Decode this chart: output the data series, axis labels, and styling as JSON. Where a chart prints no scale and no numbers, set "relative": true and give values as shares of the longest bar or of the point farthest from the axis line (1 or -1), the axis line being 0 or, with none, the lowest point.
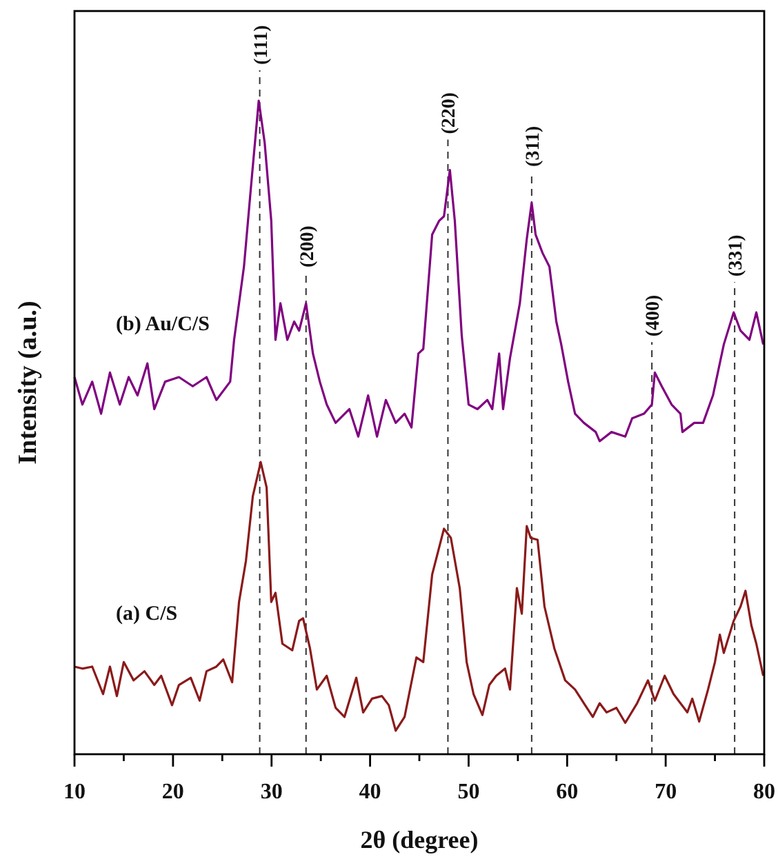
{
  "chart_data": {
    "type": "line",
    "relative": true,
    "xlabel": "2θ (degree)",
    "ylabel": "Intensity (a.u.)",
    "xlim": [
      10,
      80
    ],
    "xticks": [
      10,
      {
        "value": 15,
        "label": null
      },
      20,
      {
        "value": 25,
        "label": null
      },
      30,
      {
        "value": 35,
        "label": null
      },
      40,
      {
        "value": 45,
        "label": null
      },
      50,
      {
        "value": 55,
        "label": null
      },
      60,
      {
        "value": 65,
        "label": null
      },
      70,
      {
        "value": 75,
        "label": null
      },
      80
    ],
    "grid": false,
    "marker": "none",
    "line_style": "solid",
    "annotations": [
      {
        "text": "(111)",
        "x": 28.8,
        "y": 1.0
      },
      {
        "text": "(200)",
        "x": 33.5,
        "y": 0.69
      },
      {
        "text": "(220)",
        "x": 47.9,
        "y": 0.894
      },
      {
        "text": "(311)",
        "x": 56.4,
        "y": 0.844
      },
      {
        "text": "(400)",
        "x": 68.6,
        "y": 0.584
      },
      {
        "text": "(331)",
        "x": 77.0,
        "y": 0.676
      }
    ],
    "series": [
      {
        "name": "(b) Au/C/S",
        "color": "#800080",
        "x": [
          10.0,
          10.8,
          11.8,
          12.7,
          13.6,
          14.6,
          15.5,
          16.4,
          17.4,
          18.1,
          19.2,
          20.6,
          22.0,
          23.4,
          24.4,
          25.8,
          26.2,
          27.2,
          27.9,
          28.7,
          29.3,
          29.97,
          30.4,
          30.9,
          31.6,
          32.3,
          32.8,
          33.5,
          34.2,
          34.9,
          35.6,
          36.5,
          37.9,
          38.8,
          39.8,
          40.7,
          41.6,
          42.6,
          43.5,
          44.2,
          44.9,
          45.4,
          46.3,
          47.0,
          47.5,
          48.1,
          48.6,
          49.3,
          50.0,
          50.9,
          51.9,
          52.4,
          53.1,
          53.5,
          54.2,
          55.2,
          55.9,
          56.4,
          56.8,
          57.5,
          58.2,
          58.9,
          59.4,
          60.1,
          60.8,
          61.7,
          62.9,
          63.3,
          64.5,
          65.9,
          66.6,
          67.8,
          68.6,
          68.9,
          69.6,
          70.6,
          71.5,
          71.7,
          72.9,
          73.8,
          74.8,
          75.9,
          76.9,
          77.6,
          78.5,
          79.2,
          79.9
        ],
        "values": [
          0.577,
          0.535,
          0.57,
          0.521,
          0.584,
          0.535,
          0.577,
          0.549,
          0.598,
          0.528,
          0.57,
          0.577,
          0.563,
          0.577,
          0.542,
          0.57,
          0.634,
          0.746,
          0.866,
          1.0,
          0.936,
          0.816,
          0.634,
          0.69,
          0.634,
          0.662,
          0.648,
          0.69,
          0.613,
          0.57,
          0.535,
          0.507,
          0.528,
          0.486,
          0.549,
          0.486,
          0.542,
          0.507,
          0.521,
          0.5,
          0.613,
          0.62,
          0.795,
          0.816,
          0.823,
          0.894,
          0.816,
          0.641,
          0.535,
          0.528,
          0.542,
          0.528,
          0.613,
          0.528,
          0.606,
          0.69,
          0.788,
          0.844,
          0.795,
          0.767,
          0.746,
          0.662,
          0.627,
          0.57,
          0.521,
          0.507,
          0.493,
          0.479,
          0.493,
          0.486,
          0.514,
          0.521,
          0.535,
          0.584,
          0.563,
          0.535,
          0.521,
          0.493,
          0.507,
          0.507,
          0.549,
          0.627,
          0.676,
          0.648,
          0.634,
          0.676,
          0.627
        ]
      },
      {
        "name": "(a) C/S",
        "color": "#8b1a1a",
        "x": [
          10.0,
          10.8,
          11.8,
          12.9,
          13.6,
          14.3,
          15.0,
          16.0,
          17.1,
          18.1,
          18.8,
          19.9,
          20.6,
          21.8,
          22.7,
          23.4,
          24.4,
          25.1,
          26.0,
          26.7,
          27.4,
          28.1,
          28.9,
          29.5,
          29.97,
          30.4,
          31.1,
          32.1,
          32.8,
          33.2,
          33.9,
          34.6,
          35.6,
          36.5,
          37.4,
          38.6,
          39.3,
          40.2,
          41.2,
          41.9,
          42.6,
          43.5,
          44.7,
          45.4,
          46.3,
          47.5,
          48.2,
          49.1,
          49.8,
          50.5,
          51.4,
          52.1,
          52.8,
          53.7,
          54.2,
          54.9,
          55.4,
          55.9,
          56.3,
          57.0,
          57.7,
          58.7,
          59.8,
          60.8,
          61.7,
          62.6,
          63.3,
          64.0,
          65.0,
          65.9,
          67.1,
          68.2,
          68.9,
          69.9,
          70.8,
          72.2,
          72.7,
          73.4,
          74.3,
          75.0,
          75.5,
          75.9,
          76.9,
          77.6,
          78.1,
          78.7,
          79.2,
          79.9
        ],
        "values": [
          0.134,
          0.131,
          0.134,
          0.092,
          0.134,
          0.089,
          0.141,
          0.113,
          0.127,
          0.106,
          0.12,
          0.075,
          0.106,
          0.117,
          0.082,
          0.127,
          0.134,
          0.145,
          0.11,
          0.233,
          0.296,
          0.395,
          0.447,
          0.408,
          0.233,
          0.247,
          0.169,
          0.159,
          0.204,
          0.208,
          0.162,
          0.099,
          0.12,
          0.071,
          0.057,
          0.117,
          0.064,
          0.085,
          0.089,
          0.075,
          0.036,
          0.057,
          0.148,
          0.141,
          0.275,
          0.345,
          0.331,
          0.254,
          0.141,
          0.092,
          0.06,
          0.106,
          0.12,
          0.131,
          0.099,
          0.254,
          0.215,
          0.349,
          0.331,
          0.328,
          0.226,
          0.162,
          0.113,
          0.099,
          0.078,
          0.057,
          0.078,
          0.064,
          0.071,
          0.048,
          0.078,
          0.113,
          0.082,
          0.12,
          0.092,
          0.064,
          0.085,
          0.05,
          0.099,
          0.141,
          0.183,
          0.155,
          0.204,
          0.226,
          0.25,
          0.197,
          0.169,
          0.12
        ]
      }
    ],
    "ref_lines": [
      {
        "axis": "x",
        "value": 28.8,
        "line_style": "dashed",
        "color": "#333333"
      },
      {
        "axis": "x",
        "value": 33.5,
        "line_style": "dashed",
        "color": "#333333"
      },
      {
        "axis": "x",
        "value": 47.9,
        "line_style": "dashed",
        "color": "#333333"
      },
      {
        "axis": "x",
        "value": 56.4,
        "line_style": "dashed",
        "color": "#333333"
      },
      {
        "axis": "x",
        "value": 68.6,
        "line_style": "dashed",
        "color": "#333333"
      },
      {
        "axis": "x",
        "value": 77.0,
        "line_style": "dashed",
        "color": "#333333"
      }
    ]
  }
}
